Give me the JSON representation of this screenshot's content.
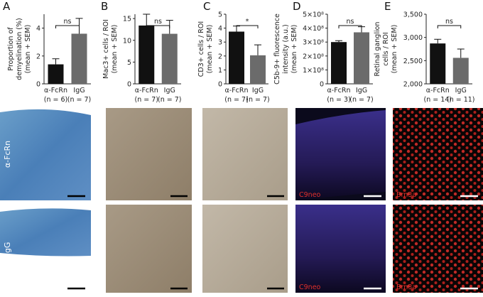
{
  "chart_data": [
    {
      "type": "bar",
      "panel": "A",
      "y_label_lines": [
        "Proportion of",
        "demyelination (%)",
        "(mean + SEM)"
      ],
      "categories": [
        "α-FcRn",
        "IgG"
      ],
      "category_notes": [
        "(n = 6)",
        "(n = 7)"
      ],
      "values": [
        1.4,
        3.6
      ],
      "errors": [
        0.4,
        1.1
      ],
      "colors": [
        "#111111",
        "#6b6b6b"
      ],
      "ylim": [
        0,
        5
      ],
      "yticks": [
        0,
        2,
        4
      ],
      "significance": "ns"
    },
    {
      "type": "bar",
      "panel": "B",
      "y_label_lines": [
        "Mac3+ cells / ROI",
        "(mean + SEM)"
      ],
      "categories": [
        "α-FcRn",
        "IgG"
      ],
      "category_notes": [
        "(n = 7)",
        "(n = 7)"
      ],
      "values": [
        13.4,
        11.5
      ],
      "errors": [
        2.6,
        3.1
      ],
      "colors": [
        "#111111",
        "#6b6b6b"
      ],
      "ylim": [
        0,
        16
      ],
      "yticks": [
        0,
        5,
        10,
        15
      ],
      "significance": "ns"
    },
    {
      "type": "bar",
      "panel": "C",
      "y_label_lines": [
        "CD3+ cells / ROI",
        "(mean + SEM)"
      ],
      "categories": [
        "α-FcRn",
        "IgG"
      ],
      "category_notes": [
        "(n = 7)",
        "(n = 7)"
      ],
      "values": [
        3.75,
        2.05
      ],
      "errors": [
        0.4,
        0.75
      ],
      "colors": [
        "#111111",
        "#6b6b6b"
      ],
      "ylim": [
        0,
        5
      ],
      "yticks": [
        0,
        1,
        2,
        3,
        4,
        5
      ],
      "significance": "*"
    },
    {
      "type": "bar",
      "panel": "D",
      "y_label_lines": [
        "C5b-9+ fluorescence",
        "intensity (a.u.)",
        "(mean + SEM)"
      ],
      "categories": [
        "α-FcRn",
        "IgG"
      ],
      "category_notes": [
        "(n = 3)",
        "(n = 7)"
      ],
      "values": [
        300000000,
        370000000
      ],
      "errors": [
        10000000,
        40000000
      ],
      "colors": [
        "#111111",
        "#6b6b6b"
      ],
      "ylim": [
        0,
        500000000
      ],
      "yticks": [
        0,
        {
          "value": 100000000,
          "label": "1×10⁸"
        },
        {
          "value": 200000000,
          "label": "2×10⁸"
        },
        {
          "value": 300000000,
          "label": "3×10⁸"
        },
        {
          "value": 400000000,
          "label": "4×10⁸"
        },
        {
          "value": 500000000,
          "label": "5×10⁸"
        }
      ],
      "significance": "ns"
    },
    {
      "type": "bar",
      "panel": "E",
      "y_label_lines": [
        "Retinal ganglion",
        "cells / ROI",
        "(mean + SEM)"
      ],
      "categories": [
        "α-FcRn",
        "IgG"
      ],
      "category_notes": [
        "(n = 14)",
        "(n = 11)"
      ],
      "values": [
        2870,
        2560
      ],
      "errors": [
        90,
        190
      ],
      "colors": [
        "#111111",
        "#6b6b6b"
      ],
      "ylim": [
        2000,
        3500
      ],
      "yticks": [
        {
          "value": 2000,
          "label": "2,000"
        },
        {
          "value": 2500,
          "label": "2,500"
        },
        {
          "value": 3000,
          "label": "3,000"
        },
        {
          "value": 3500,
          "label": "3,500"
        }
      ],
      "significance": "ns"
    }
  ],
  "image_panels": {
    "row_labels": [
      "α-FcRn",
      "IgG"
    ],
    "stain_labels": [
      "C9neo",
      "Brn3a"
    ]
  }
}
